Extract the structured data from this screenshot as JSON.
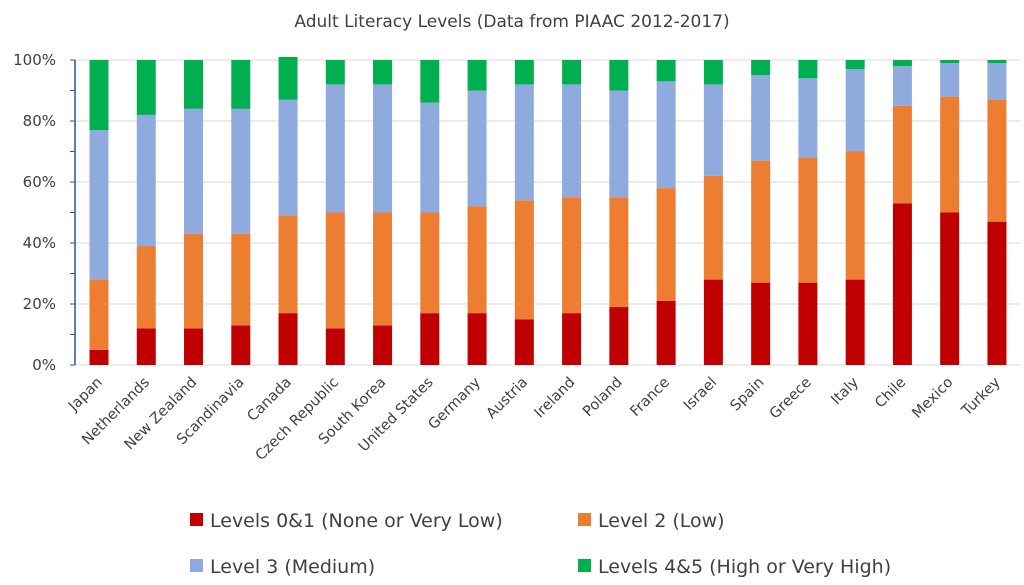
{
  "chart_data": {
    "type": "bar",
    "stacked": true,
    "percent": true,
    "title": "Adult Literacy Levels (Data from PIAAC 2012-2017)",
    "xlabel": "",
    "ylabel": "",
    "ylim": [
      0,
      100
    ],
    "yticks": [
      "0%",
      "20%",
      "40%",
      "60%",
      "80%",
      "100%"
    ],
    "grid": true,
    "legend_position": "bottom",
    "categories": [
      "Japan",
      "Netherlands",
      "New Zealand",
      "Scandinavia",
      "Canada",
      "Czech Republic",
      "South Korea",
      "United States",
      "Germany",
      "Austria",
      "Ireland",
      "Poland",
      "France",
      "Israel",
      "Spain",
      "Greece",
      "Italy",
      "Chile",
      "Mexico",
      "Turkey"
    ],
    "series": [
      {
        "name": "Levels 0&1 (None or Very Low)",
        "color": "#C00000",
        "values": [
          5,
          12,
          12,
          13,
          17,
          12,
          13,
          17,
          17,
          15,
          17,
          19,
          21,
          28,
          27,
          27,
          28,
          53,
          50,
          47
        ]
      },
      {
        "name": "Level 2 (Low)",
        "color": "#ED7D31",
        "values": [
          23,
          27,
          31,
          30,
          32,
          38,
          37,
          33,
          35,
          39,
          38,
          36,
          37,
          34,
          40,
          41,
          42,
          32,
          38,
          40
        ]
      },
      {
        "name": "Level 3 (Medium)",
        "color": "#8FAADC",
        "values": [
          49,
          43,
          41,
          41,
          38,
          42,
          42,
          36,
          38,
          38,
          37,
          35,
          35,
          30,
          28,
          26,
          27,
          13,
          11,
          12
        ]
      },
      {
        "name": "Levels 4&5 (High or Very High)",
        "color": "#00B050",
        "values": [
          23,
          18,
          16,
          16,
          14,
          8,
          8,
          14,
          10,
          8,
          8,
          10,
          7,
          8,
          5,
          6,
          3,
          2,
          1,
          1
        ]
      }
    ]
  }
}
